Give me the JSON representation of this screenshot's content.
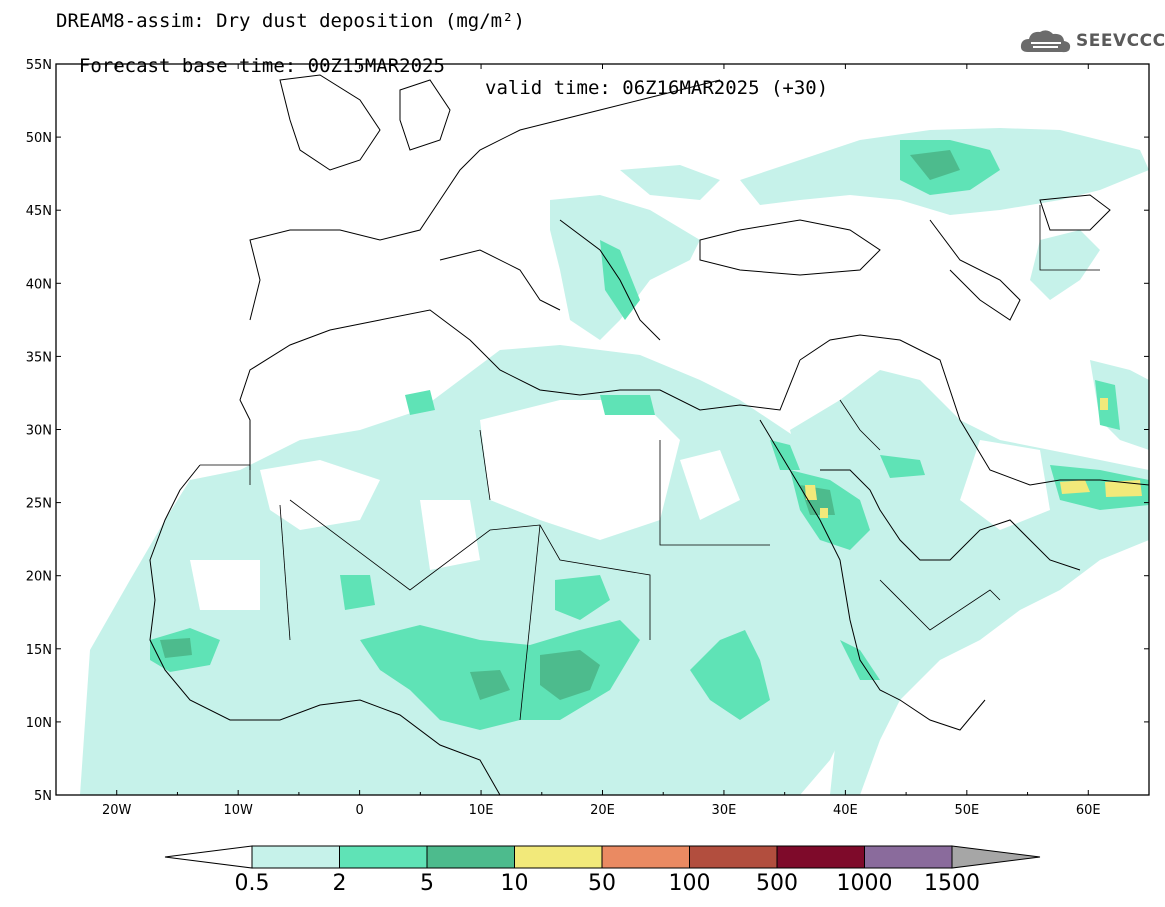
{
  "title": {
    "line1": "DREAM8-assim: Dry dust deposition (mg/m²)",
    "base_time": "Forecast base time: 00Z15MAR2025",
    "valid_time": "valid time: 06Z16MAR2025 (+30)"
  },
  "logo": {
    "text": "SEEVCCC",
    "icon": "cloud-icon"
  },
  "map": {
    "lon_range": [
      -25,
      65
    ],
    "lat_range": [
      5,
      55
    ],
    "lat_labels": [
      "55N",
      "50N",
      "45N",
      "40N",
      "35N",
      "30N",
      "25N",
      "20N",
      "15N",
      "10N",
      "5N"
    ],
    "lon_labels": [
      "20W",
      "10W",
      "0",
      "10E",
      "20E",
      "30E",
      "40E",
      "50E",
      "60E"
    ]
  },
  "colorbar": {
    "labels": [
      "0.5",
      "2",
      "5",
      "10",
      "50",
      "100",
      "500",
      "1000",
      "1500"
    ],
    "colors": [
      "#c6f2ea",
      "#5fe3b6",
      "#4dbb8d",
      "#f2e97a",
      "#ea8a62",
      "#b24e3e",
      "#7e0a2a",
      "#8a6b9c",
      "#a6a6a6"
    ]
  }
}
